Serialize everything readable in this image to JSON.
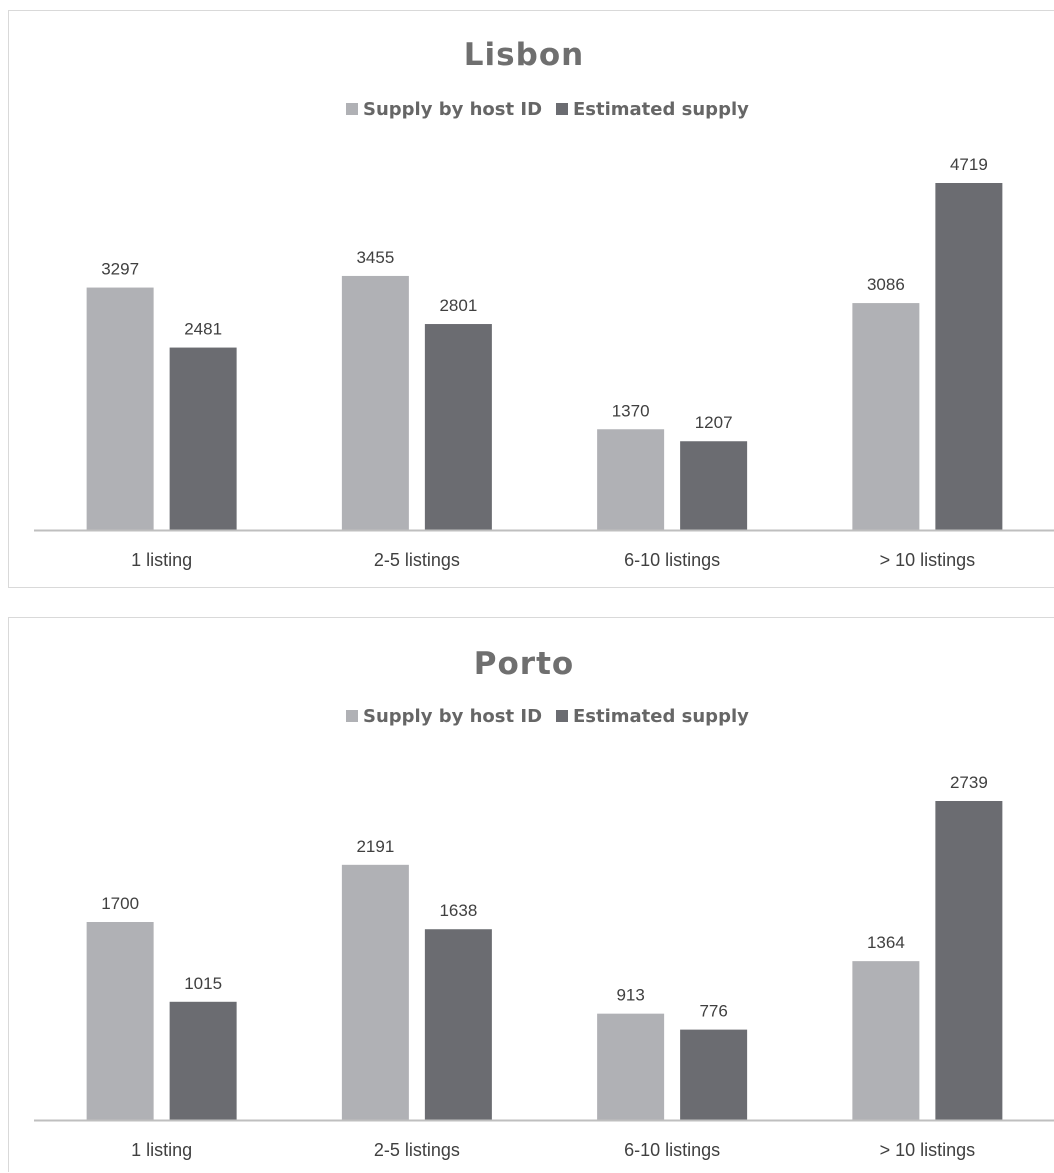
{
  "chart_data": [
    {
      "type": "bar",
      "title": "Lisbon",
      "categories": [
        "1 listing",
        "2-5 listings",
        "6-10 listings",
        "> 10 listings"
      ],
      "series": [
        {
          "name": "Supply by host ID",
          "values": [
            3297,
            3455,
            1370,
            3086
          ],
          "color": "#b0b1b5"
        },
        {
          "name": "Estimated supply",
          "values": [
            2481,
            2801,
            1207,
            4719
          ],
          "color": "#6b6c71"
        }
      ],
      "ylim": [
        0,
        4719
      ],
      "grid": false,
      "legend_position": "top"
    },
    {
      "type": "bar",
      "title": "Porto",
      "categories": [
        "1 listing",
        "2-5 listings",
        "6-10 listings",
        "> 10 listings"
      ],
      "series": [
        {
          "name": "Supply by host ID",
          "values": [
            1700,
            2191,
            913,
            1364
          ],
          "color": "#b0b1b5"
        },
        {
          "name": "Estimated supply",
          "values": [
            1015,
            1638,
            776,
            2739
          ],
          "color": "#6b6c71"
        }
      ],
      "ylim": [
        0,
        2739
      ],
      "grid": false,
      "legend_position": "top"
    }
  ]
}
